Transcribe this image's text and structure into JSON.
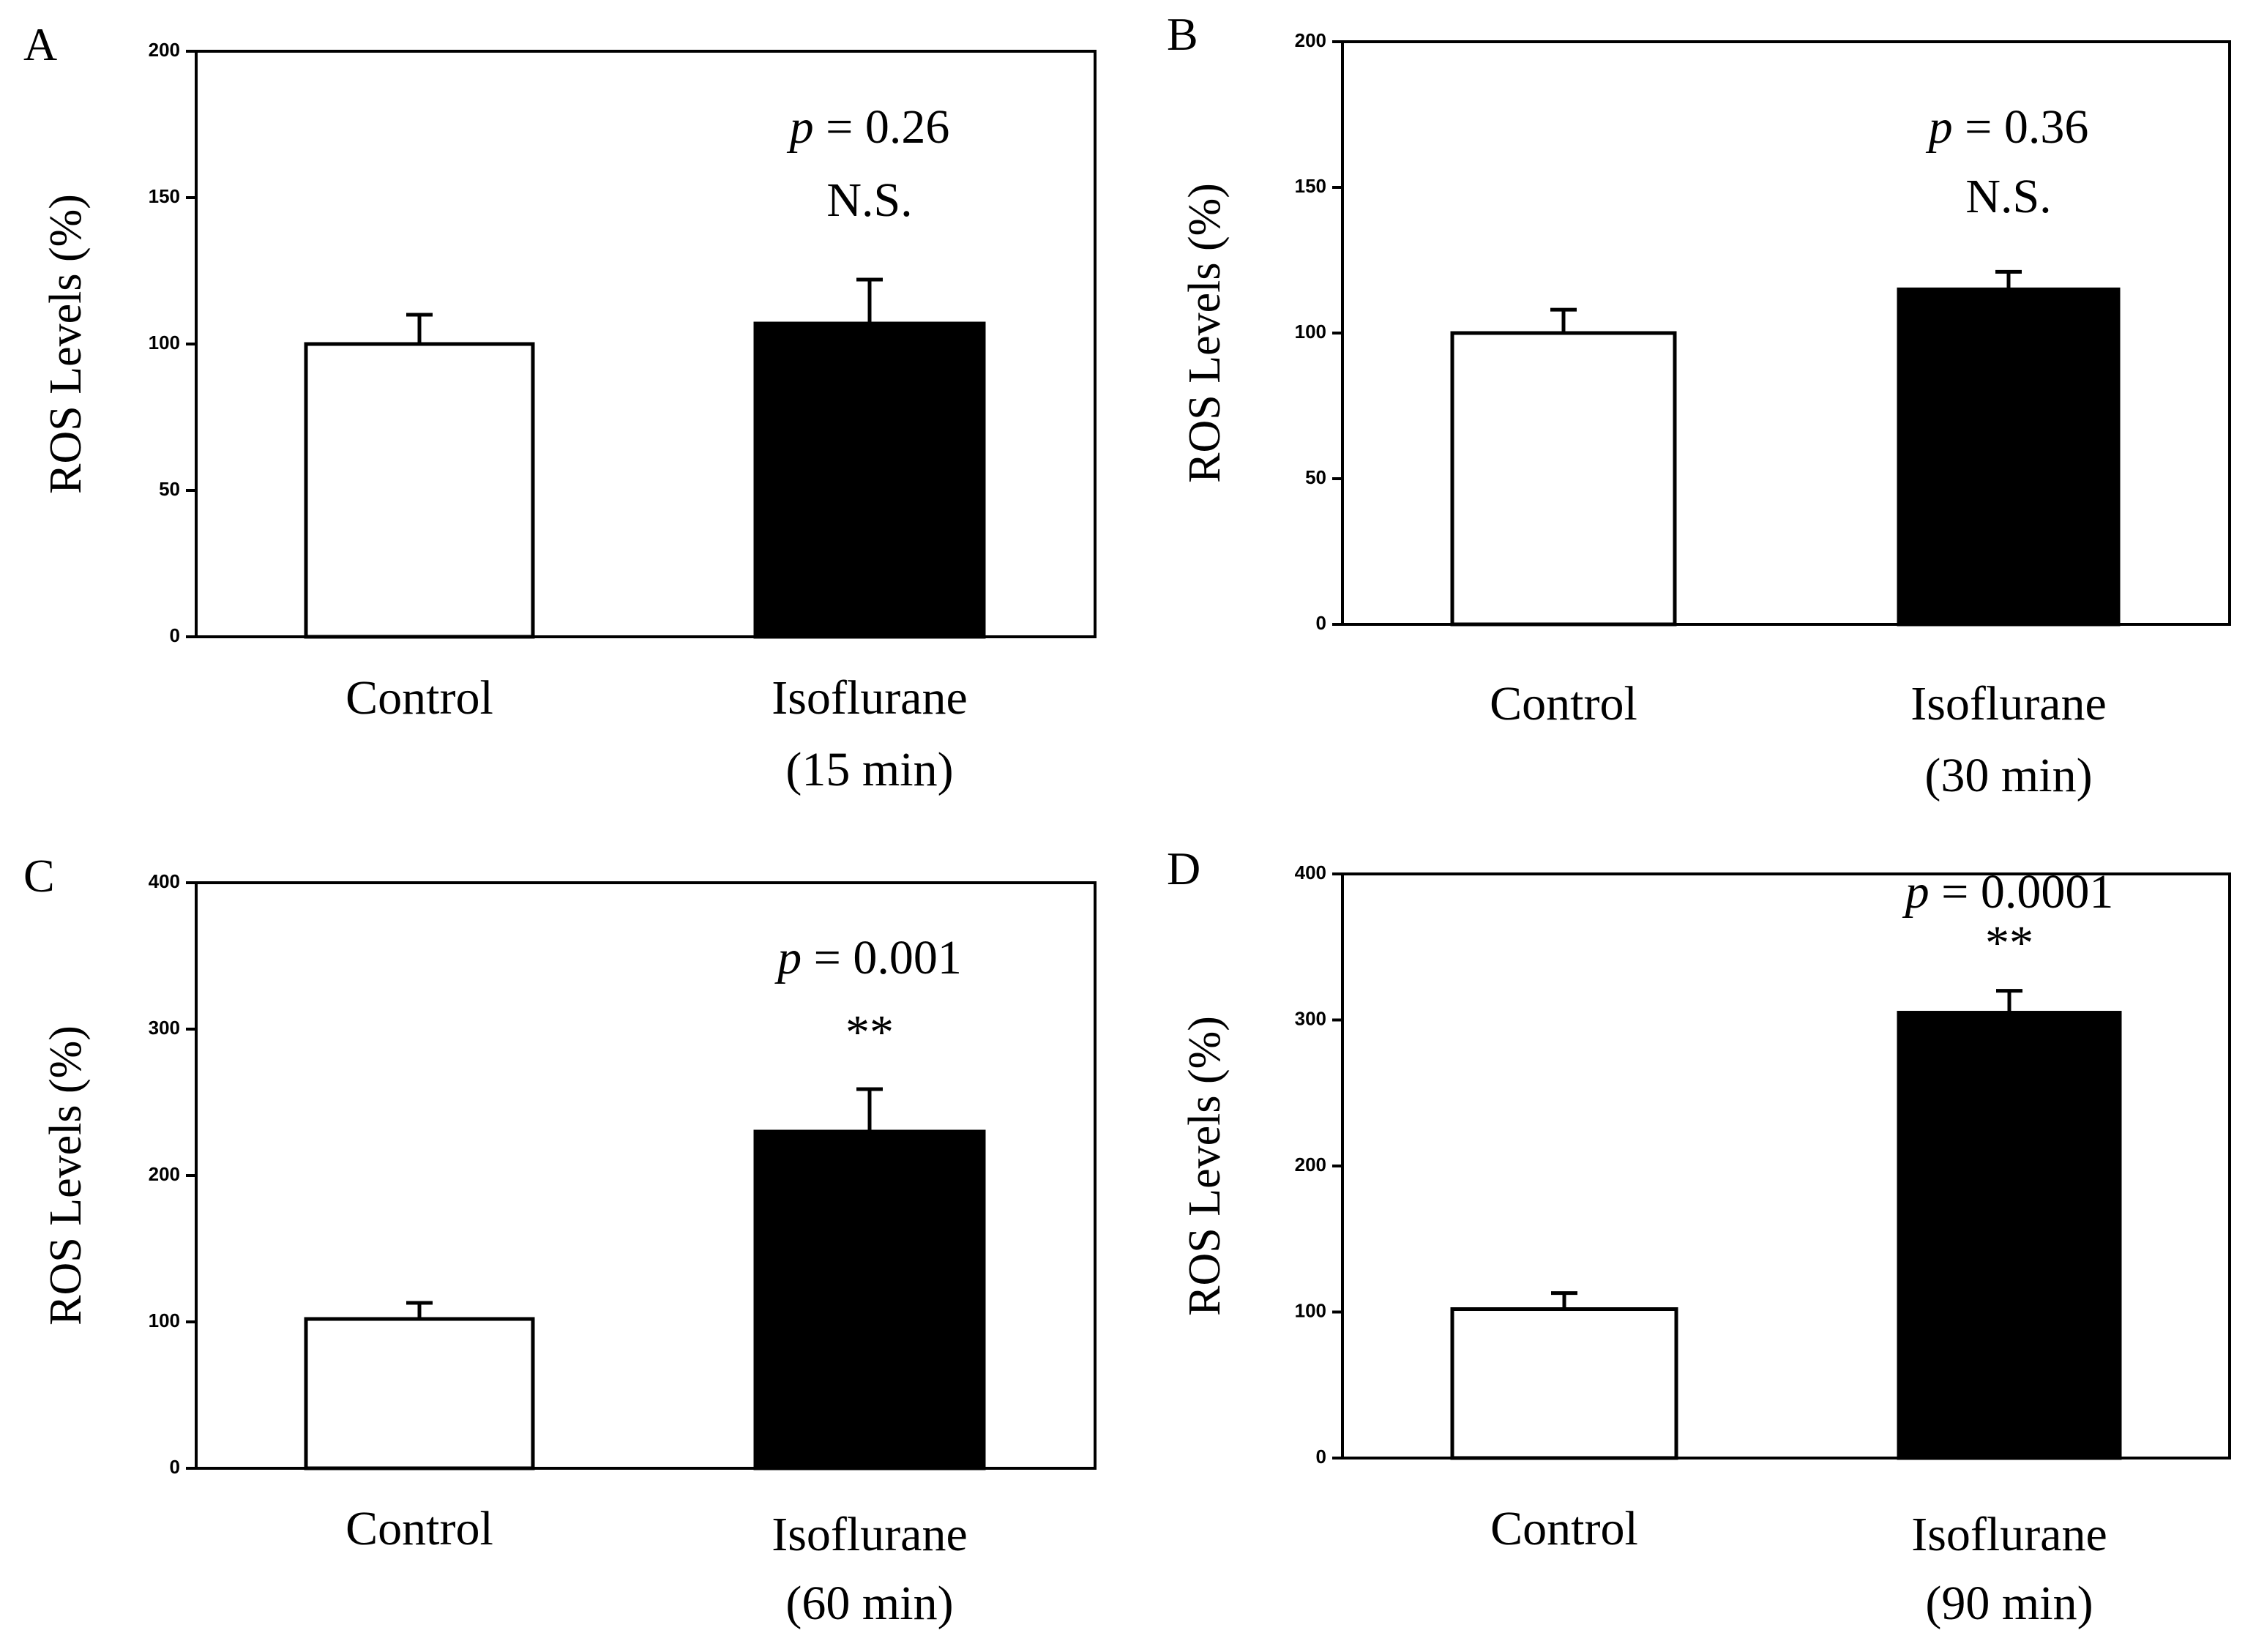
{
  "chart_data": [
    {
      "type": "bar",
      "panel": "A",
      "ylabel": "ROS Levels (%)",
      "ylim": [
        0,
        200
      ],
      "yticks": [
        0,
        50,
        100,
        150,
        200
      ],
      "categories": [
        {
          "lines": [
            "Control"
          ]
        },
        {
          "lines": [
            "Isoflurane",
            "(15 min)"
          ]
        }
      ],
      "values": [
        100,
        107
      ],
      "errors": [
        10,
        15
      ],
      "bar_colors": [
        "#ffffff",
        "#000000"
      ],
      "annotation": {
        "p_symbol": "p",
        "p_text": " = 0.26",
        "significance": "N.S."
      }
    },
    {
      "type": "bar",
      "panel": "B",
      "ylabel": "ROS Levels (%)",
      "ylim": [
        0,
        200
      ],
      "yticks": [
        0,
        50,
        100,
        150,
        200
      ],
      "categories": [
        {
          "lines": [
            "Control"
          ]
        },
        {
          "lines": [
            "Isoflurane",
            "(30 min)"
          ]
        }
      ],
      "values": [
        100,
        115
      ],
      "errors": [
        8,
        6
      ],
      "bar_colors": [
        "#ffffff",
        "#000000"
      ],
      "annotation": {
        "p_symbol": "p",
        "p_text": " = 0.36",
        "significance": "N.S."
      }
    },
    {
      "type": "bar",
      "panel": "C",
      "ylabel": "ROS Levels (%)",
      "ylim": [
        0,
        400
      ],
      "yticks": [
        0,
        100,
        200,
        300,
        400
      ],
      "categories": [
        {
          "lines": [
            "Control"
          ]
        },
        {
          "lines": [
            "Isoflurane",
            "(60 min)"
          ]
        }
      ],
      "values": [
        102,
        230
      ],
      "errors": [
        11,
        29
      ],
      "bar_colors": [
        "#ffffff",
        "#000000"
      ],
      "annotation": {
        "p_symbol": "p",
        "p_text": " = 0.001",
        "significance": "**"
      }
    },
    {
      "type": "bar",
      "panel": "D",
      "ylabel": "ROS Levels (%)",
      "ylim": [
        0,
        400
      ],
      "yticks": [
        0,
        100,
        200,
        300,
        400
      ],
      "categories": [
        {
          "lines": [
            "Control"
          ]
        },
        {
          "lines": [
            "Isoflurane",
            "(90 min)"
          ]
        }
      ],
      "values": [
        102,
        305
      ],
      "errors": [
        11,
        15
      ],
      "bar_colors": [
        "#ffffff",
        "#000000"
      ],
      "annotation": {
        "p_symbol": "p",
        "p_text": " = 0.0001",
        "significance": "**"
      }
    }
  ]
}
